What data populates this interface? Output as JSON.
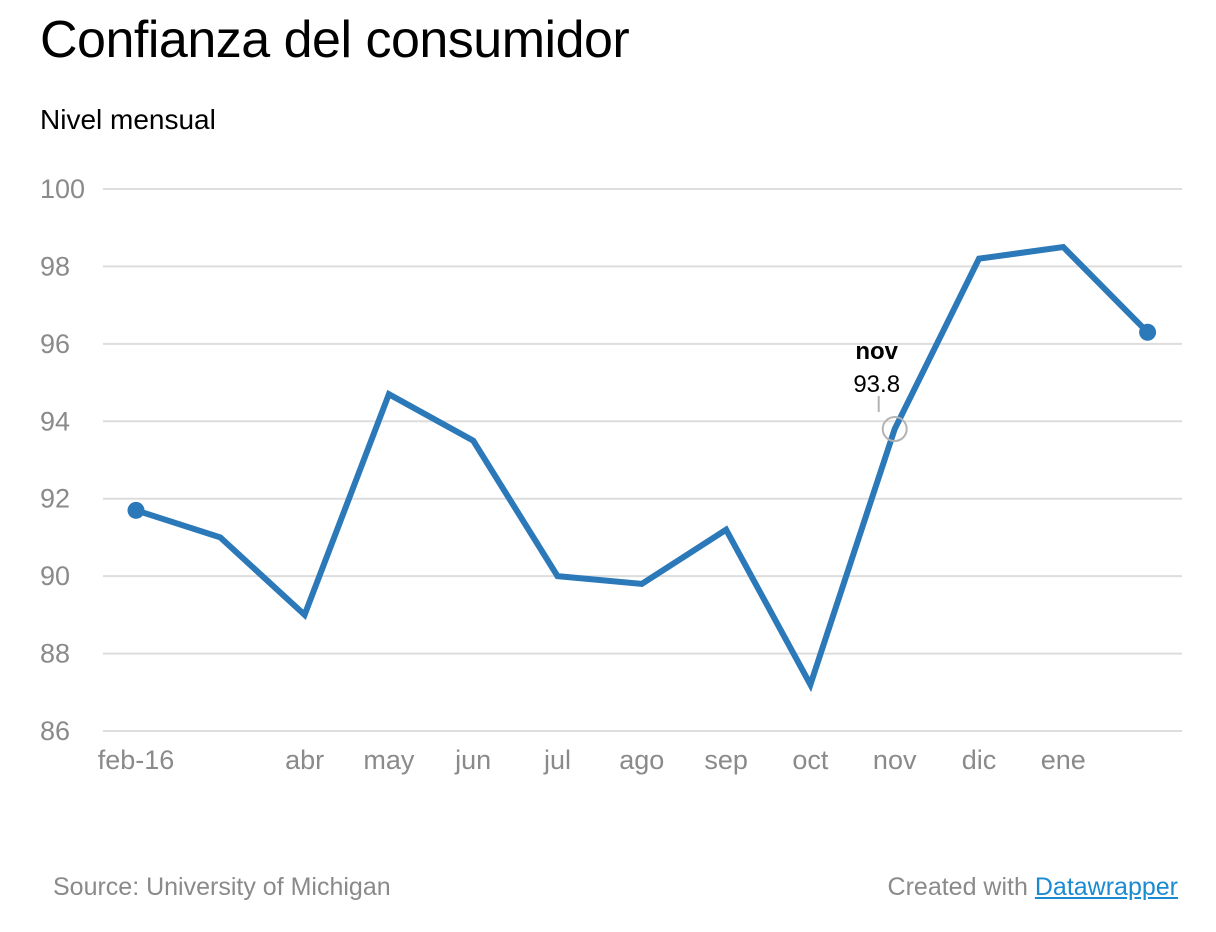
{
  "title": "Confianza del consumidor",
  "subtitle": "Nivel mensual",
  "footer": {
    "source": "Source: University of Michigan",
    "credit_prefix": "Created with",
    "credit_link": "Datawrapper"
  },
  "colors": {
    "line": "#2b79b9",
    "grid": "#dddddd",
    "tick_text": "#8a8a8a",
    "highlight_ring": "#b3b3b3",
    "link": "#1a8bd1"
  },
  "chart_data": {
    "type": "line",
    "title": "Confianza del consumidor",
    "subtitle": "Nivel mensual",
    "xlabel": "",
    "ylabel": "",
    "ylim": [
      86,
      100
    ],
    "y_ticks": [
      86,
      88,
      90,
      92,
      94,
      96,
      98,
      100
    ],
    "grid": true,
    "x": [
      "2016-02",
      "2016-03",
      "2016-04",
      "2016-05",
      "2016-06",
      "2016-07",
      "2016-08",
      "2016-09",
      "2016-10",
      "2016-11",
      "2016-12",
      "2017-01",
      "2017-02"
    ],
    "x_tick_labels": [
      "feb-16",
      "",
      "abr",
      "may",
      "jun",
      "jul",
      "ago",
      "sep",
      "oct",
      "nov",
      "dic",
      "ene",
      ""
    ],
    "series": [
      {
        "values": [
          91.7,
          91.0,
          89.0,
          94.7,
          93.5,
          90.0,
          89.8,
          91.2,
          87.2,
          93.8,
          98.2,
          98.5,
          96.3
        ]
      }
    ],
    "annotations": [
      {
        "x": "2016-11",
        "label": "nov",
        "value": "93.8"
      }
    ]
  }
}
